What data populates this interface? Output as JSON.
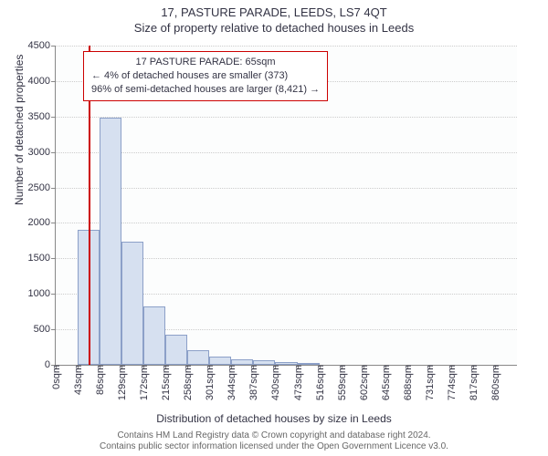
{
  "title_main": "17, PASTURE PARADE, LEEDS, LS7 4QT",
  "title_sub": "Size of property relative to detached houses in Leeds",
  "y_axis_label": "Number of detached properties",
  "x_axis_label": "Distribution of detached houses by size in Leeds",
  "footer_line1": "Contains HM Land Registry data © Crown copyright and database right 2024.",
  "footer_line2": "Contains public sector information licensed under the Open Government Licence v3.0.",
  "chart": {
    "type": "histogram",
    "ylim_max": 4500,
    "ytick_step": 500,
    "bar_fill": "#d6e0f0",
    "bar_border": "#8ca0c8",
    "grid_color": "#cccccc",
    "background": "#fcfdfd",
    "marker_color": "#cc0000",
    "marker_value": 65,
    "bin_width": 43,
    "x_max": 903,
    "bars": [
      {
        "x_start": 43,
        "count": 1900
      },
      {
        "x_start": 86,
        "count": 3480
      },
      {
        "x_start": 129,
        "count": 1740
      },
      {
        "x_start": 172,
        "count": 820
      },
      {
        "x_start": 215,
        "count": 420
      },
      {
        "x_start": 258,
        "count": 200
      },
      {
        "x_start": 301,
        "count": 120
      },
      {
        "x_start": 344,
        "count": 80
      },
      {
        "x_start": 387,
        "count": 60
      },
      {
        "x_start": 430,
        "count": 40
      },
      {
        "x_start": 473,
        "count": 20
      }
    ],
    "x_ticks": [
      0,
      43,
      86,
      129,
      172,
      215,
      258,
      301,
      344,
      387,
      430,
      473,
      516,
      559,
      602,
      645,
      688,
      731,
      774,
      817,
      860
    ],
    "x_tick_unit": "sqm"
  },
  "annotation": {
    "line1": "17 PASTURE PARADE: 65sqm",
    "line2": "← 4% of detached houses are smaller (373)",
    "line3": "96% of semi-detached houses are larger (8,421) →"
  }
}
